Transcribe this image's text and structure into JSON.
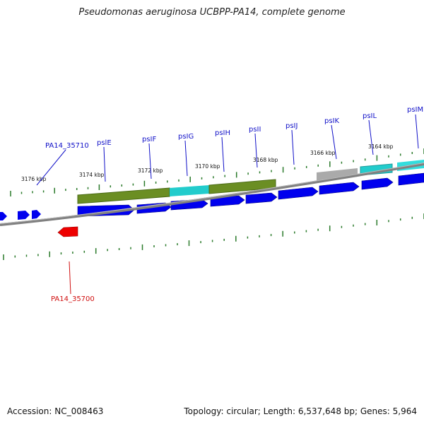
{
  "title": "Pseudomonas aeruginosa UCBPP-PA14, complete genome",
  "footer": {
    "accession": "Accession: NC_008463",
    "topology": "Topology: circular; Length: 6,537,648 bp; Genes: 5,964"
  },
  "colors": {
    "cds": "#0000ee",
    "cds_reverse": "#ee0000",
    "backbone": "#808080",
    "ticks": "#2a7a2a",
    "olive": "#6b8e23",
    "cyan": "#22cccc",
    "gray": "#aaaaaa"
  },
  "kbp_labels": [
    "3176 kbp",
    "3174 kbp",
    "3172 kbp",
    "3170 kbp",
    "3168 kbp",
    "3166 kbp",
    "3164 kbp"
  ],
  "gene_labels": [
    {
      "text": "PA14_35710",
      "strand": "forward"
    },
    {
      "text": "pslE",
      "strand": "forward"
    },
    {
      "text": "psIF",
      "strand": "forward"
    },
    {
      "text": "psIG",
      "strand": "forward"
    },
    {
      "text": "psIH",
      "strand": "forward"
    },
    {
      "text": "psII",
      "strand": "forward"
    },
    {
      "text": "psIJ",
      "strand": "forward"
    },
    {
      "text": "psIK",
      "strand": "forward"
    },
    {
      "text": "psIL",
      "strand": "forward"
    },
    {
      "text": "psIM",
      "strand": "forward"
    },
    {
      "text": "PA14_35700",
      "strand": "reverse"
    }
  ]
}
